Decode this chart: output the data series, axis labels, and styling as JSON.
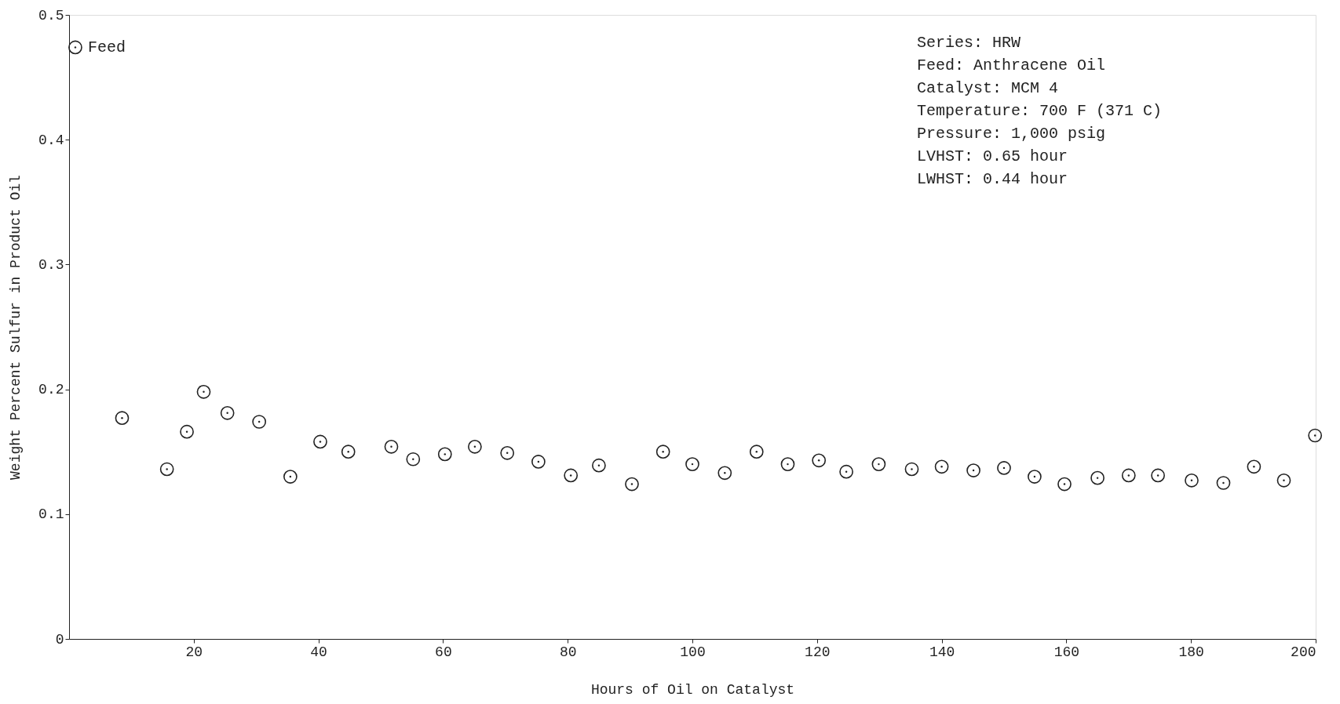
{
  "chart_data": {
    "type": "scatter",
    "xlabel": "Hours of Oil on Catalyst",
    "ylabel": "Weight Percent Sulfur in Product Oil",
    "x": [
      1,
      8.5,
      15.7,
      18.9,
      21.6,
      25.4,
      30.5,
      35.5,
      40.3,
      44.8,
      51.7,
      55.2,
      60.3,
      65.1,
      70.3,
      75.3,
      80.5,
      85.0,
      90.3,
      95.3,
      100,
      105.2,
      110.3,
      115.3,
      120.3,
      124.7,
      129.9,
      135.2,
      140,
      145.1,
      150,
      154.9,
      159.7,
      165,
      170,
      174.7,
      180.1,
      185.2,
      190.1,
      194.9,
      199.9
    ],
    "values": [
      0.474,
      0.177,
      0.136,
      0.166,
      0.198,
      0.181,
      0.174,
      0.13,
      0.158,
      0.15,
      0.154,
      0.144,
      0.148,
      0.154,
      0.149,
      0.142,
      0.131,
      0.139,
      0.124,
      0.15,
      0.14,
      0.133,
      0.15,
      0.14,
      0.143,
      0.134,
      0.14,
      0.136,
      0.138,
      0.135,
      0.137,
      0.13,
      0.124,
      0.129,
      0.131,
      0.131,
      0.127,
      0.125,
      0.138,
      0.127,
      0.163
    ],
    "color": "#222222",
    "marker": "circle",
    "xlim": [
      0,
      200
    ],
    "xticks": [
      20,
      40,
      60,
      80,
      100,
      120,
      140,
      160,
      180,
      200
    ],
    "ylim": [
      0,
      0.5
    ],
    "yticks": [
      0,
      0.1,
      0.2,
      0.3,
      0.4,
      0.5
    ],
    "grid": false,
    "annotations": [
      {
        "text": "Feed",
        "x": 1,
        "y": 0.474
      },
      "Series:  HRW",
      "Feed:  Anthracene Oil",
      "Catalyst:  MCM 4",
      "Temperature:  700 F (371 C)",
      "Pressure:  1,000 psig",
      "LVHST:  0.65 hour",
      "LWHST:  0.44 hour"
    ]
  }
}
